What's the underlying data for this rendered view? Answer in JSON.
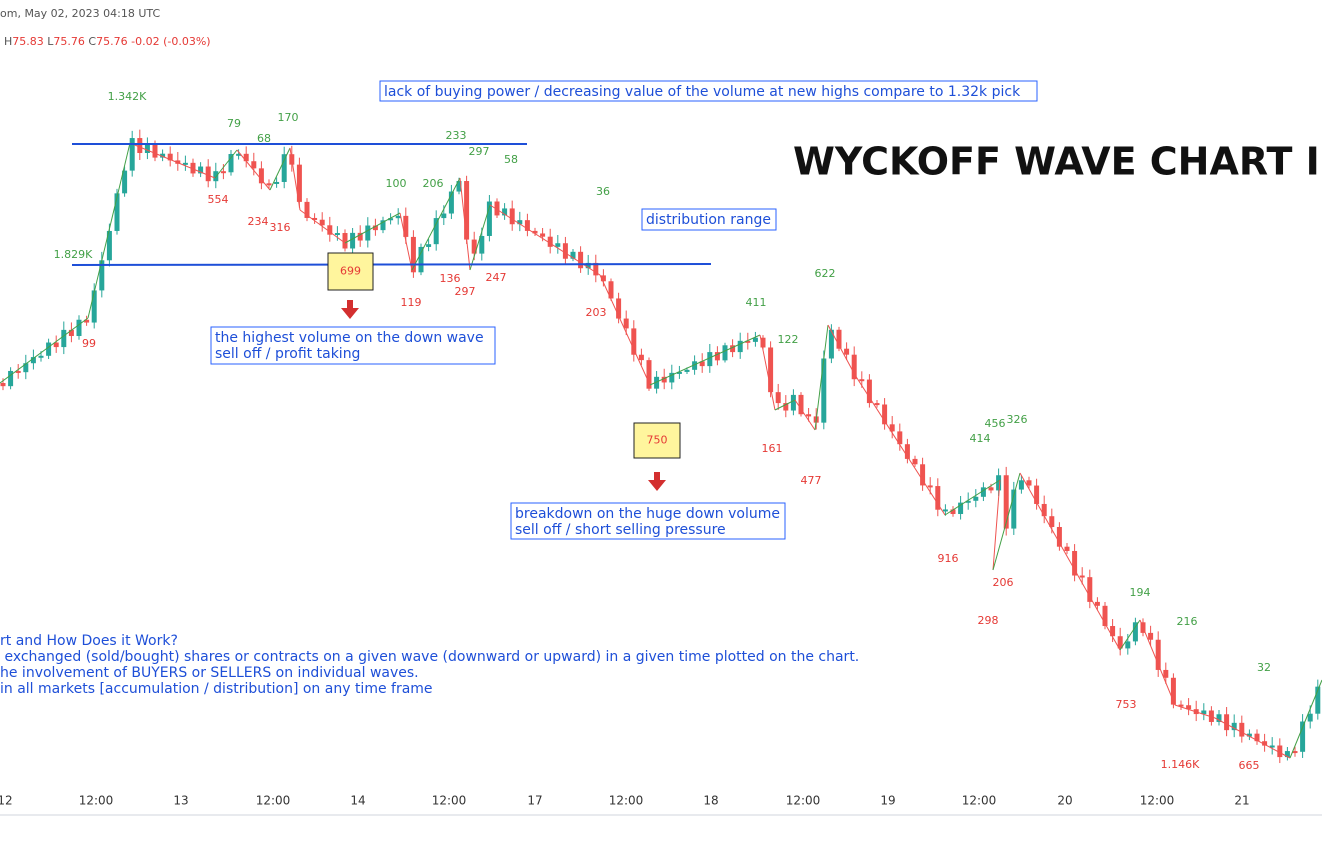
{
  "header": {
    "info": "om, May 02, 2023 04:18 UTC",
    "ohlc": [
      {
        "label": "H",
        "value": "75.83"
      },
      {
        "label": "L",
        "value": "75.76"
      },
      {
        "label": "C",
        "value": "75.76"
      }
    ],
    "change": "-0.02 (-0.03%)"
  },
  "title": "WYCKOFF WAVE CHART IND",
  "annotations": [
    {
      "lines": [
        "lack of buying power / decreasing value of the volume at new highs compare to 1.32k pick"
      ]
    },
    {
      "lines": [
        "distribution range"
      ]
    },
    {
      "lines": [
        "the highest volume on the down wave",
        "sell off / profit taking"
      ]
    },
    {
      "lines": [
        "breakdown on the huge down volume",
        "sell off / short selling pressure"
      ]
    }
  ],
  "volume_boxes": [
    "699",
    "750"
  ],
  "wave_labels": [
    {
      "text": "1.342K",
      "color": "#43a047"
    },
    {
      "text": "79",
      "color": "#43a047"
    },
    {
      "text": "68",
      "color": "#43a047"
    },
    {
      "text": "170",
      "color": "#43a047"
    },
    {
      "text": "233",
      "color": "#43a047"
    },
    {
      "text": "297",
      "color": "#43a047"
    },
    {
      "text": "58",
      "color": "#43a047"
    },
    {
      "text": "100",
      "color": "#43a047"
    },
    {
      "text": "206",
      "color": "#43a047"
    },
    {
      "text": "36",
      "color": "#43a047"
    },
    {
      "text": "1.829K",
      "color": "#43a047"
    },
    {
      "text": "411",
      "color": "#43a047"
    },
    {
      "text": "622",
      "color": "#43a047"
    },
    {
      "text": "122",
      "color": "#43a047"
    },
    {
      "text": "456",
      "color": "#43a047"
    },
    {
      "text": "326",
      "color": "#43a047"
    },
    {
      "text": "414",
      "color": "#43a047"
    },
    {
      "text": "194",
      "color": "#43a047"
    },
    {
      "text": "216",
      "color": "#43a047"
    },
    {
      "text": "32",
      "color": "#43a047"
    },
    {
      "text": "554",
      "color": "#e53935"
    },
    {
      "text": "234",
      "color": "#e53935"
    },
    {
      "text": "316",
      "color": "#e53935"
    },
    {
      "text": "99",
      "color": "#e53935"
    },
    {
      "text": "119",
      "color": "#e53935"
    },
    {
      "text": "136",
      "color": "#e53935"
    },
    {
      "text": "297",
      "color": "#e53935"
    },
    {
      "text": "247",
      "color": "#e53935"
    },
    {
      "text": "203",
      "color": "#e53935"
    },
    {
      "text": "161",
      "color": "#e53935"
    },
    {
      "text": "477",
      "color": "#e53935"
    },
    {
      "text": "916",
      "color": "#e53935"
    },
    {
      "text": "206",
      "color": "#e53935"
    },
    {
      "text": "298",
      "color": "#e53935"
    },
    {
      "text": "753",
      "color": "#e53935"
    },
    {
      "text": "1.146K",
      "color": "#e53935"
    },
    {
      "text": "665",
      "color": "#e53935"
    }
  ],
  "notes": [
    "rt and How Does it Work?",
    " exchanged (sold/bought) shares or contracts on a given wave (downward or upward) in a given time plotted on the chart.",
    "he involvement of BUYERS or SELLERS on individual waves.",
    "in all markets [accumulation / distribution] on any time frame"
  ],
  "x_axis_labels": [
    "12",
    "12:00",
    "13",
    "12:00",
    "14",
    "12:00",
    "17",
    "12:00",
    "18",
    "12:00",
    "19",
    "12:00",
    "20",
    "12:00",
    "21"
  ]
}
